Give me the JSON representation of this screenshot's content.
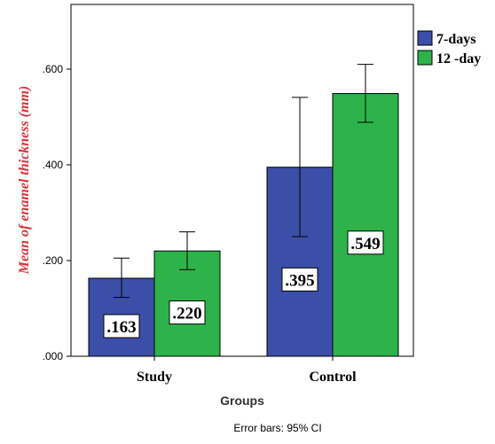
{
  "chart_data": {
    "type": "bar",
    "categories": [
      "Study",
      "Control"
    ],
    "series": [
      {
        "name": "7-days",
        "values": [
          0.163,
          0.395
        ],
        "ci_low": [
          0.123,
          0.25
        ],
        "ci_high": [
          0.205,
          0.541
        ],
        "labels": [
          ".163",
          ".395"
        ]
      },
      {
        "name": "12 -day",
        "values": [
          0.22,
          0.549
        ],
        "ci_low": [
          0.181,
          0.489
        ],
        "ci_high": [
          0.26,
          0.61
        ],
        "labels": [
          ".220",
          ".549"
        ]
      }
    ],
    "ylabel": "Mean of enamel thickness (mm)",
    "xlabel": "Groups",
    "ylim": [
      0,
      0.75
    ],
    "yticks": [
      0,
      0.2,
      0.4,
      0.6
    ],
    "ytick_labels": [
      ".000",
      ".200",
      ".400",
      ".600"
    ],
    "footnote": "Error bars: 95% CI",
    "grid": false,
    "legend_position": "top-right",
    "colors": {
      "series": [
        "#3b4ea8",
        "#2db34a"
      ],
      "ylabel": "#d9323a"
    }
  }
}
